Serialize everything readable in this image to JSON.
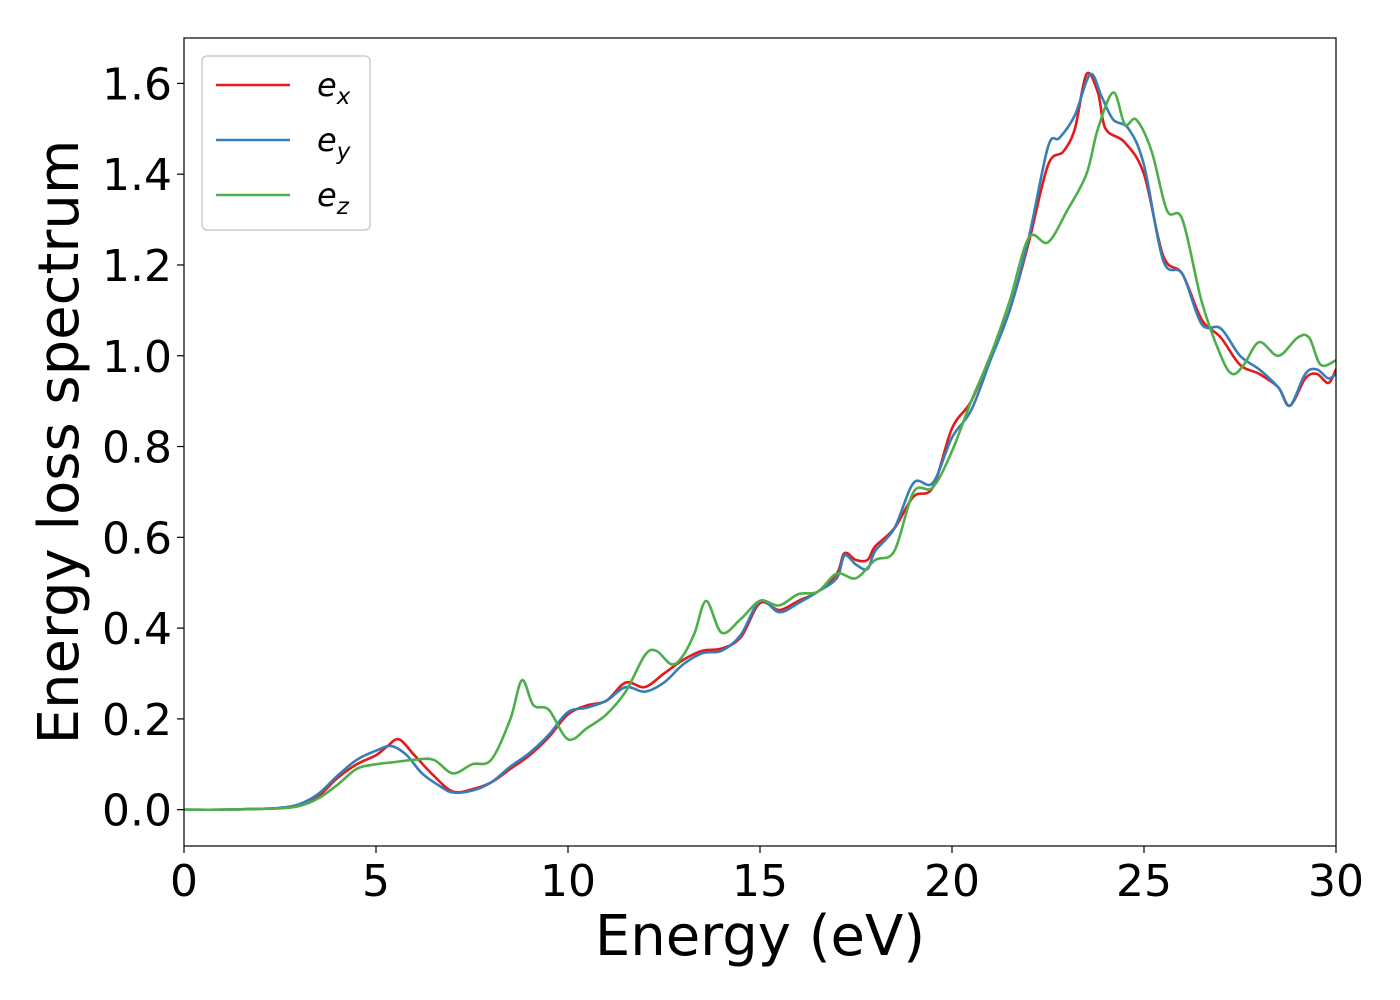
{
  "chart_data": {
    "type": "line",
    "xlabel": "Energy (eV)",
    "ylabel": "Energy loss spectrum",
    "xlim": [
      0,
      30
    ],
    "ylim": [
      -0.08,
      1.7
    ],
    "xticks": [
      0,
      5,
      10,
      15,
      20,
      25,
      30
    ],
    "xtick_labels": [
      "0",
      "5",
      "10",
      "15",
      "20",
      "25",
      "30"
    ],
    "yticks": [
      0.0,
      0.2,
      0.4,
      0.6,
      0.8,
      1.0,
      1.2,
      1.4,
      1.6
    ],
    "ytick_labels": [
      "0.0",
      "0.2",
      "0.4",
      "0.6",
      "0.8",
      "1.0",
      "1.2",
      "1.4",
      "1.6"
    ],
    "grid": false,
    "legend_position": "top-left",
    "series": [
      {
        "name": "e",
        "subscript": "x",
        "color": "#e41a1c",
        "points": [
          [
            0,
            0
          ],
          [
            1,
            0
          ],
          [
            2,
            0.002
          ],
          [
            2.5,
            0.004
          ],
          [
            3,
            0.01
          ],
          [
            3.5,
            0.03
          ],
          [
            4,
            0.07
          ],
          [
            4.5,
            0.1
          ],
          [
            5,
            0.12
          ],
          [
            5.3,
            0.14
          ],
          [
            5.6,
            0.155
          ],
          [
            6,
            0.12
          ],
          [
            6.5,
            0.075
          ],
          [
            7,
            0.04
          ],
          [
            7.5,
            0.045
          ],
          [
            8,
            0.06
          ],
          [
            8.5,
            0.09
          ],
          [
            9,
            0.12
          ],
          [
            9.5,
            0.16
          ],
          [
            10,
            0.21
          ],
          [
            10.5,
            0.23
          ],
          [
            11,
            0.24
          ],
          [
            11.5,
            0.28
          ],
          [
            12,
            0.27
          ],
          [
            12.5,
            0.3
          ],
          [
            13,
            0.33
          ],
          [
            13.5,
            0.35
          ],
          [
            14,
            0.355
          ],
          [
            14.5,
            0.38
          ],
          [
            15,
            0.455
          ],
          [
            15.5,
            0.44
          ],
          [
            16,
            0.46
          ],
          [
            16.5,
            0.48
          ],
          [
            17,
            0.52
          ],
          [
            17.2,
            0.565
          ],
          [
            17.5,
            0.55
          ],
          [
            17.8,
            0.55
          ],
          [
            18,
            0.58
          ],
          [
            18.5,
            0.62
          ],
          [
            19,
            0.69
          ],
          [
            19.5,
            0.71
          ],
          [
            20,
            0.84
          ],
          [
            20.5,
            0.9
          ],
          [
            21,
            1.0
          ],
          [
            21.5,
            1.1
          ],
          [
            22,
            1.25
          ],
          [
            22.5,
            1.42
          ],
          [
            22.9,
            1.45
          ],
          [
            23.2,
            1.5
          ],
          [
            23.5,
            1.62
          ],
          [
            23.8,
            1.58
          ],
          [
            24,
            1.5
          ],
          [
            24.5,
            1.47
          ],
          [
            25,
            1.4
          ],
          [
            25.5,
            1.22
          ],
          [
            26,
            1.18
          ],
          [
            26.5,
            1.08
          ],
          [
            27,
            1.04
          ],
          [
            27.5,
            0.98
          ],
          [
            28,
            0.96
          ],
          [
            28.5,
            0.93
          ],
          [
            28.8,
            0.89
          ],
          [
            29.2,
            0.95
          ],
          [
            29.5,
            0.96
          ],
          [
            29.8,
            0.94
          ],
          [
            30,
            0.97
          ]
        ]
      },
      {
        "name": "e",
        "subscript": "y",
        "color": "#377eb8",
        "points": [
          [
            0,
            0
          ],
          [
            1,
            0
          ],
          [
            2,
            0.002
          ],
          [
            2.5,
            0.004
          ],
          [
            3,
            0.012
          ],
          [
            3.5,
            0.035
          ],
          [
            4,
            0.075
          ],
          [
            4.5,
            0.11
          ],
          [
            5,
            0.13
          ],
          [
            5.4,
            0.14
          ],
          [
            5.8,
            0.12
          ],
          [
            6.2,
            0.08
          ],
          [
            6.7,
            0.05
          ],
          [
            7,
            0.038
          ],
          [
            7.5,
            0.042
          ],
          [
            8,
            0.06
          ],
          [
            8.5,
            0.095
          ],
          [
            9,
            0.125
          ],
          [
            9.5,
            0.165
          ],
          [
            10,
            0.215
          ],
          [
            10.5,
            0.225
          ],
          [
            11,
            0.24
          ],
          [
            11.5,
            0.27
          ],
          [
            12,
            0.26
          ],
          [
            12.5,
            0.28
          ],
          [
            13,
            0.32
          ],
          [
            13.5,
            0.345
          ],
          [
            14,
            0.35
          ],
          [
            14.5,
            0.385
          ],
          [
            15,
            0.46
          ],
          [
            15.5,
            0.435
          ],
          [
            16,
            0.455
          ],
          [
            16.5,
            0.48
          ],
          [
            17,
            0.51
          ],
          [
            17.2,
            0.56
          ],
          [
            17.5,
            0.54
          ],
          [
            17.8,
            0.53
          ],
          [
            18,
            0.57
          ],
          [
            18.5,
            0.62
          ],
          [
            19,
            0.72
          ],
          [
            19.5,
            0.72
          ],
          [
            20,
            0.82
          ],
          [
            20.5,
            0.88
          ],
          [
            21,
            0.99
          ],
          [
            21.5,
            1.1
          ],
          [
            22,
            1.26
          ],
          [
            22.5,
            1.46
          ],
          [
            22.8,
            1.48
          ],
          [
            23.2,
            1.53
          ],
          [
            23.6,
            1.62
          ],
          [
            23.9,
            1.57
          ],
          [
            24.2,
            1.52
          ],
          [
            24.6,
            1.5
          ],
          [
            25,
            1.42
          ],
          [
            25.5,
            1.21
          ],
          [
            26,
            1.18
          ],
          [
            26.5,
            1.07
          ],
          [
            27,
            1.06
          ],
          [
            27.5,
            1.0
          ],
          [
            28,
            0.97
          ],
          [
            28.5,
            0.93
          ],
          [
            28.8,
            0.89
          ],
          [
            29.2,
            0.96
          ],
          [
            29.5,
            0.97
          ],
          [
            29.8,
            0.95
          ],
          [
            30,
            0.96
          ]
        ]
      },
      {
        "name": "e",
        "subscript": "z",
        "color": "#4daf4a",
        "points": [
          [
            0,
            0
          ],
          [
            1,
            0
          ],
          [
            2,
            0.002
          ],
          [
            2.5,
            0.003
          ],
          [
            3,
            0.008
          ],
          [
            3.5,
            0.025
          ],
          [
            4,
            0.055
          ],
          [
            4.5,
            0.09
          ],
          [
            5,
            0.1
          ],
          [
            5.5,
            0.105
          ],
          [
            6,
            0.11
          ],
          [
            6.5,
            0.11
          ],
          [
            7,
            0.08
          ],
          [
            7.5,
            0.1
          ],
          [
            8,
            0.11
          ],
          [
            8.5,
            0.2
          ],
          [
            8.8,
            0.285
          ],
          [
            9.1,
            0.23
          ],
          [
            9.5,
            0.22
          ],
          [
            10,
            0.155
          ],
          [
            10.5,
            0.18
          ],
          [
            11,
            0.21
          ],
          [
            11.5,
            0.26
          ],
          [
            12,
            0.34
          ],
          [
            12.3,
            0.35
          ],
          [
            12.7,
            0.32
          ],
          [
            13,
            0.34
          ],
          [
            13.3,
            0.39
          ],
          [
            13.6,
            0.46
          ],
          [
            14,
            0.39
          ],
          [
            14.5,
            0.42
          ],
          [
            15,
            0.46
          ],
          [
            15.5,
            0.45
          ],
          [
            16,
            0.475
          ],
          [
            16.5,
            0.48
          ],
          [
            17,
            0.52
          ],
          [
            17.5,
            0.51
          ],
          [
            18,
            0.55
          ],
          [
            18.5,
            0.57
          ],
          [
            19,
            0.7
          ],
          [
            19.5,
            0.71
          ],
          [
            20,
            0.79
          ],
          [
            20.5,
            0.9
          ],
          [
            21,
            1.0
          ],
          [
            21.5,
            1.12
          ],
          [
            22,
            1.26
          ],
          [
            22.5,
            1.25
          ],
          [
            23,
            1.32
          ],
          [
            23.5,
            1.4
          ],
          [
            23.8,
            1.5
          ],
          [
            24.2,
            1.58
          ],
          [
            24.5,
            1.51
          ],
          [
            24.8,
            1.52
          ],
          [
            25.2,
            1.45
          ],
          [
            25.6,
            1.32
          ],
          [
            26,
            1.3
          ],
          [
            26.5,
            1.12
          ],
          [
            27,
            1.0
          ],
          [
            27.3,
            0.96
          ],
          [
            27.6,
            0.98
          ],
          [
            28,
            1.03
          ],
          [
            28.5,
            1.0
          ],
          [
            29,
            1.04
          ],
          [
            29.3,
            1.04
          ],
          [
            29.6,
            0.98
          ],
          [
            30,
            0.99
          ]
        ]
      }
    ]
  }
}
